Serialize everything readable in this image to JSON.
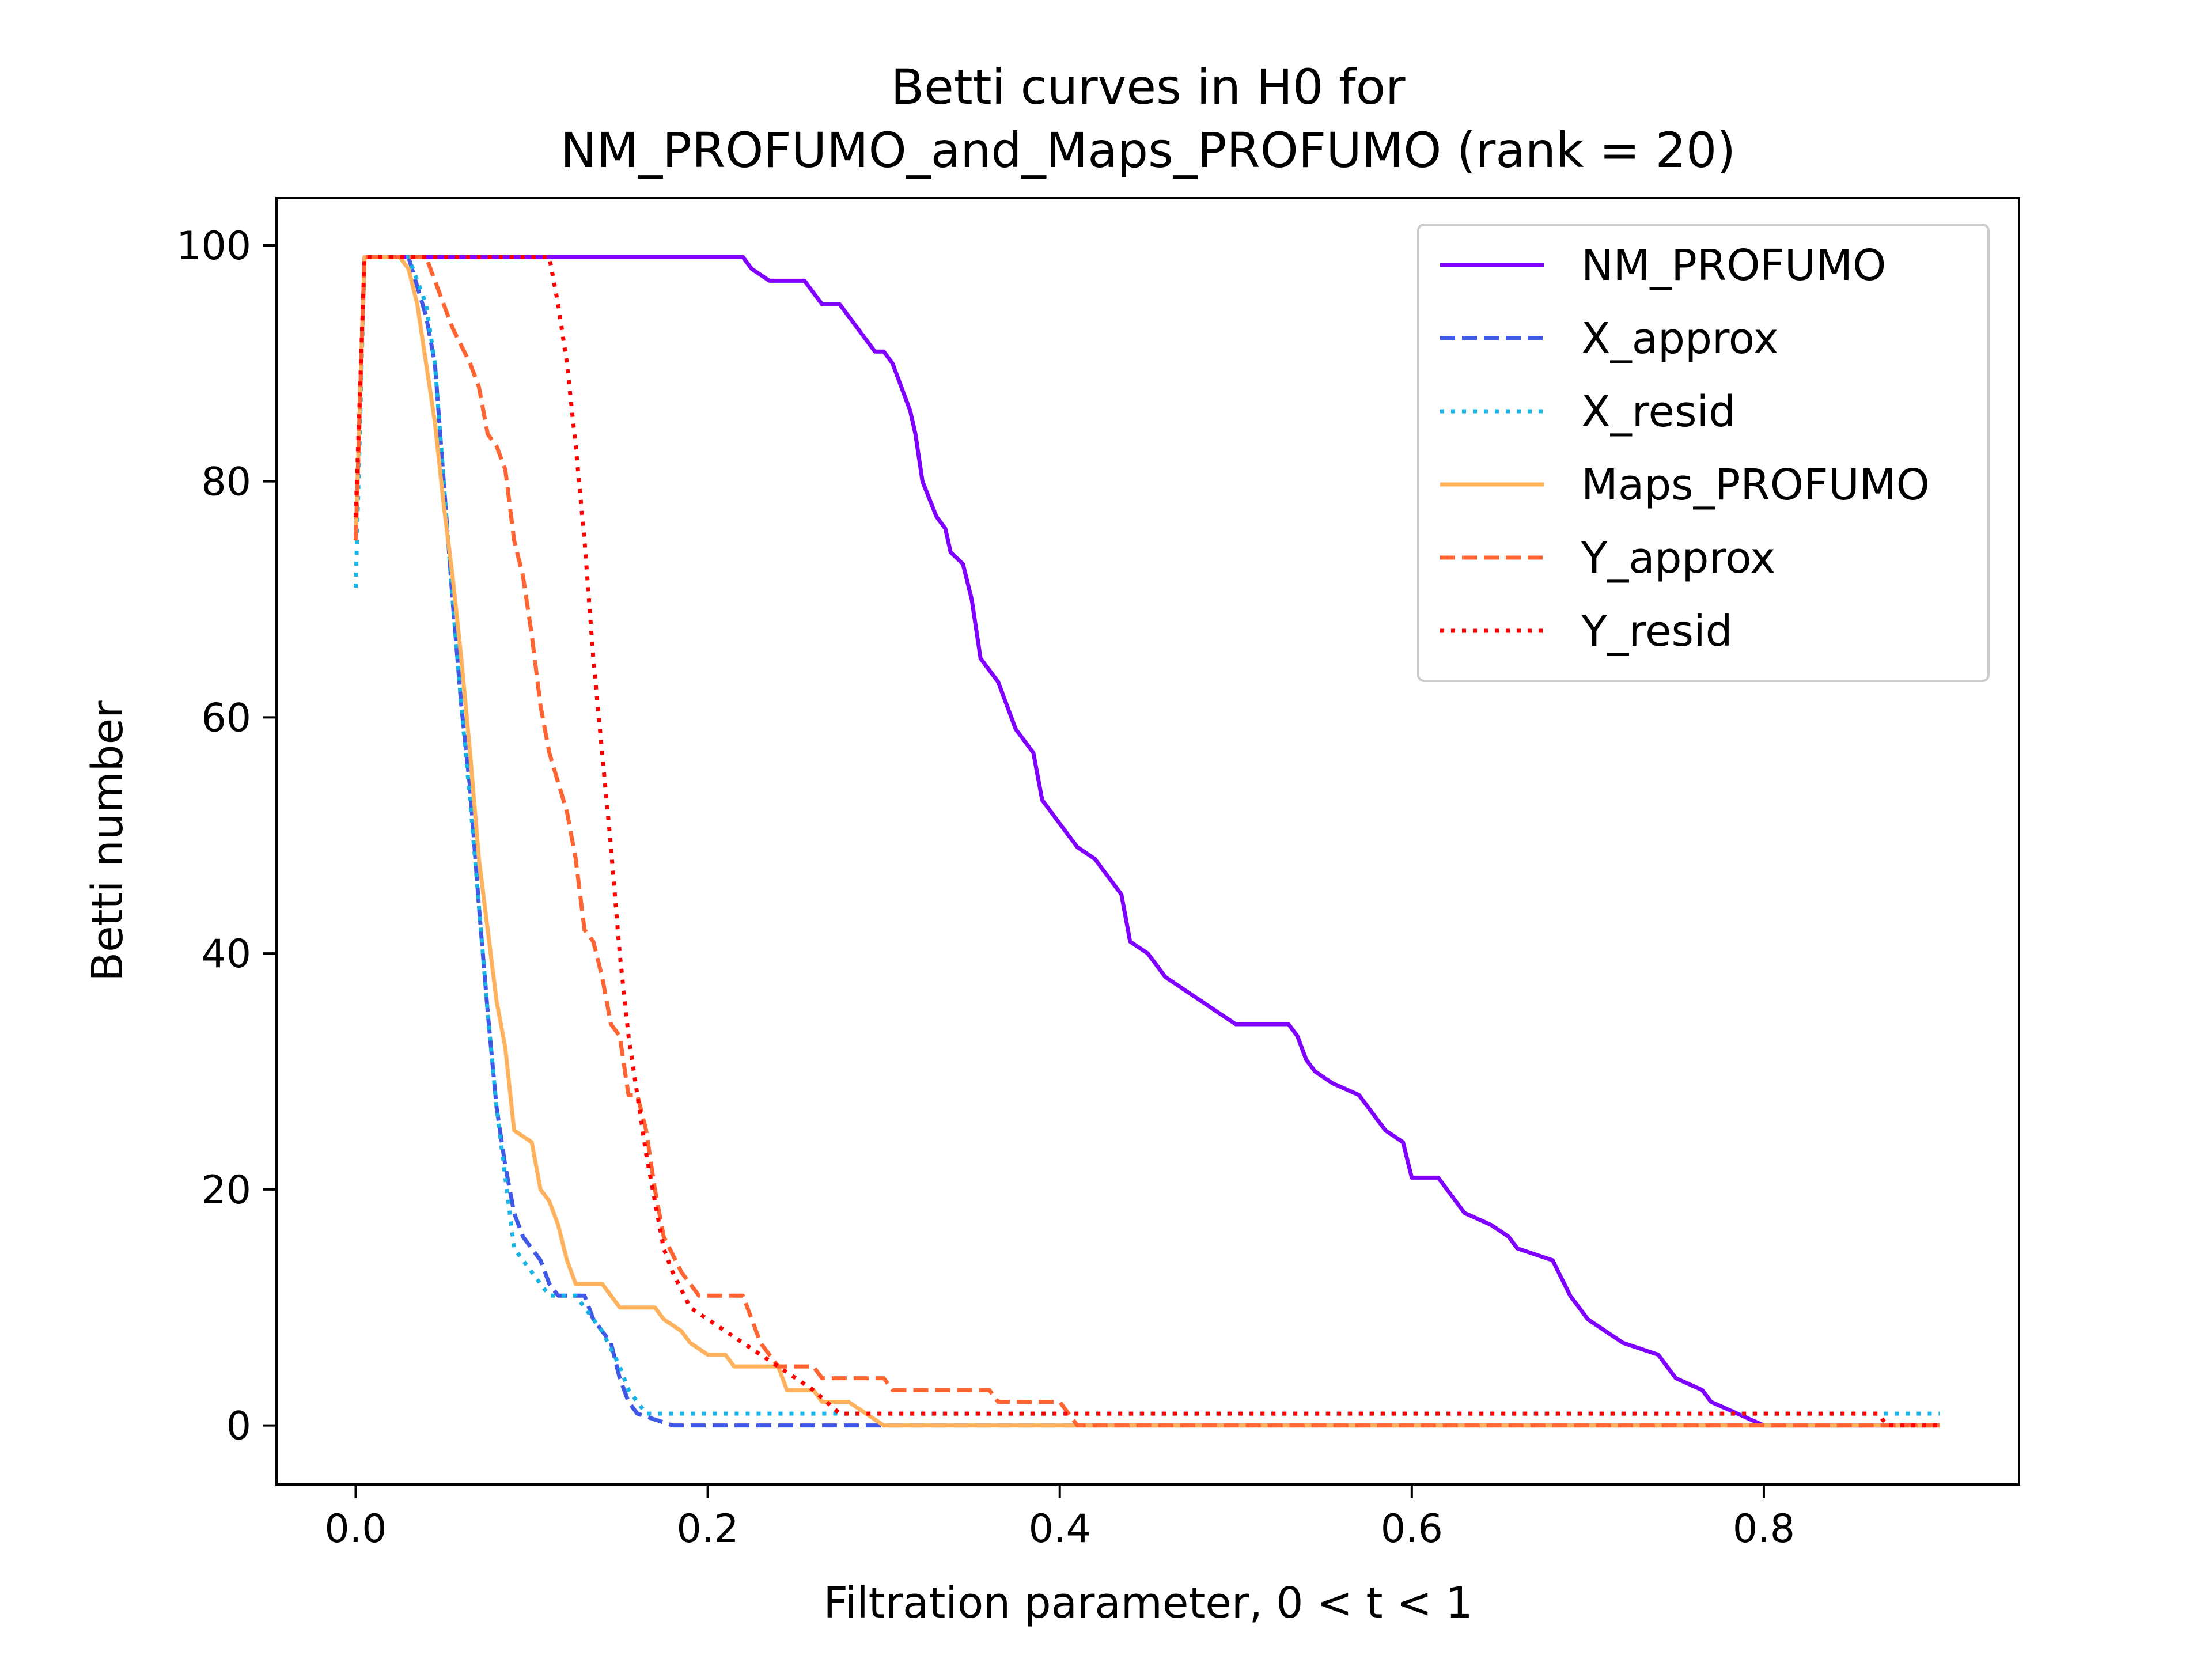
{
  "chart_data": {
    "type": "line",
    "title": "Betti curves in H0 for",
    "subtitle": "NM_PROFUMO_and_Maps_PROFUMO (rank = 20)",
    "xlabel": "Filtration parameter, 0 < t < 1",
    "ylabel": "Betti number",
    "xlim": [
      -0.045,
      0.945
    ],
    "ylim": [
      -5,
      104
    ],
    "xticks": [
      0.0,
      0.2,
      0.4,
      0.6,
      0.8
    ],
    "xtick_labels": [
      "0.0",
      "0.2",
      "0.4",
      "0.6",
      "0.8"
    ],
    "yticks": [
      0,
      20,
      40,
      60,
      80,
      100
    ],
    "ytick_labels": [
      "0",
      "20",
      "40",
      "60",
      "80",
      "100"
    ],
    "grid": false,
    "legend_position": "top-right",
    "series": [
      {
        "name": "NM_PROFUMO",
        "color": "#7f00ff",
        "dash": "solid",
        "width": 7,
        "points": [
          [
            0,
            75
          ],
          [
            0.005,
            99
          ],
          [
            0.22,
            99
          ],
          [
            0.225,
            98
          ],
          [
            0.235,
            97
          ],
          [
            0.255,
            97
          ],
          [
            0.26,
            96
          ],
          [
            0.265,
            95
          ],
          [
            0.275,
            95
          ],
          [
            0.28,
            94
          ],
          [
            0.285,
            93
          ],
          [
            0.29,
            92
          ],
          [
            0.295,
            91
          ],
          [
            0.3,
            91
          ],
          [
            0.305,
            90
          ],
          [
            0.31,
            88
          ],
          [
            0.315,
            86
          ],
          [
            0.318,
            84
          ],
          [
            0.322,
            80
          ],
          [
            0.33,
            77
          ],
          [
            0.335,
            76
          ],
          [
            0.338,
            74
          ],
          [
            0.345,
            73
          ],
          [
            0.35,
            70
          ],
          [
            0.355,
            65
          ],
          [
            0.365,
            63
          ],
          [
            0.375,
            59
          ],
          [
            0.385,
            57
          ],
          [
            0.39,
            53
          ],
          [
            0.395,
            52
          ],
          [
            0.4,
            51
          ],
          [
            0.41,
            49
          ],
          [
            0.42,
            48
          ],
          [
            0.43,
            46
          ],
          [
            0.435,
            45
          ],
          [
            0.44,
            41
          ],
          [
            0.45,
            40
          ],
          [
            0.46,
            38
          ],
          [
            0.47,
            37
          ],
          [
            0.48,
            36
          ],
          [
            0.49,
            35
          ],
          [
            0.5,
            34
          ],
          [
            0.53,
            34
          ],
          [
            0.535,
            33
          ],
          [
            0.54,
            31
          ],
          [
            0.545,
            30
          ],
          [
            0.555,
            29
          ],
          [
            0.57,
            28
          ],
          [
            0.58,
            26
          ],
          [
            0.585,
            25
          ],
          [
            0.595,
            24
          ],
          [
            0.6,
            21
          ],
          [
            0.615,
            21
          ],
          [
            0.62,
            20
          ],
          [
            0.63,
            18
          ],
          [
            0.645,
            17
          ],
          [
            0.655,
            16
          ],
          [
            0.66,
            15
          ],
          [
            0.68,
            14
          ],
          [
            0.69,
            11
          ],
          [
            0.7,
            9
          ],
          [
            0.71,
            8
          ],
          [
            0.72,
            7
          ],
          [
            0.74,
            6
          ],
          [
            0.75,
            4
          ],
          [
            0.765,
            3
          ],
          [
            0.77,
            2
          ],
          [
            0.785,
            1
          ],
          [
            0.8,
            0
          ],
          [
            0.9,
            0
          ]
        ]
      },
      {
        "name": "X_approx",
        "color": "#4058e6",
        "dash": "dashed",
        "width": 7,
        "points": [
          [
            0,
            75
          ],
          [
            0.005,
            99
          ],
          [
            0.03,
            99
          ],
          [
            0.04,
            94
          ],
          [
            0.045,
            90
          ],
          [
            0.05,
            80
          ],
          [
            0.055,
            70
          ],
          [
            0.06,
            61
          ],
          [
            0.065,
            54
          ],
          [
            0.07,
            44
          ],
          [
            0.075,
            35
          ],
          [
            0.08,
            27
          ],
          [
            0.085,
            22
          ],
          [
            0.09,
            18
          ],
          [
            0.095,
            16
          ],
          [
            0.1,
            15
          ],
          [
            0.105,
            14
          ],
          [
            0.11,
            12
          ],
          [
            0.115,
            11
          ],
          [
            0.13,
            11
          ],
          [
            0.135,
            9
          ],
          [
            0.145,
            7
          ],
          [
            0.15,
            4
          ],
          [
            0.155,
            2
          ],
          [
            0.16,
            1
          ],
          [
            0.18,
            0
          ],
          [
            0.9,
            0
          ]
        ]
      },
      {
        "name": "X_resid",
        "color": "#19b4e6",
        "dash": "dotted",
        "width": 7,
        "points": [
          [
            0,
            71
          ],
          [
            0.005,
            99
          ],
          [
            0.03,
            99
          ],
          [
            0.04,
            95
          ],
          [
            0.045,
            90
          ],
          [
            0.05,
            80
          ],
          [
            0.055,
            70
          ],
          [
            0.06,
            61
          ],
          [
            0.065,
            53
          ],
          [
            0.07,
            44
          ],
          [
            0.075,
            35
          ],
          [
            0.08,
            27
          ],
          [
            0.085,
            21
          ],
          [
            0.09,
            15
          ],
          [
            0.095,
            14
          ],
          [
            0.1,
            13
          ],
          [
            0.105,
            12
          ],
          [
            0.11,
            11
          ],
          [
            0.125,
            11
          ],
          [
            0.13,
            10
          ],
          [
            0.14,
            8
          ],
          [
            0.15,
            5
          ],
          [
            0.155,
            3
          ],
          [
            0.16,
            2
          ],
          [
            0.165,
            1
          ],
          [
            0.9,
            1
          ]
        ]
      },
      {
        "name": "Maps_PROFUMO",
        "color": "#ffb25e",
        "dash": "solid",
        "width": 7,
        "points": [
          [
            0,
            75
          ],
          [
            0.005,
            99
          ],
          [
            0.025,
            99
          ],
          [
            0.03,
            98
          ],
          [
            0.035,
            95
          ],
          [
            0.04,
            90
          ],
          [
            0.045,
            85
          ],
          [
            0.05,
            78
          ],
          [
            0.055,
            72
          ],
          [
            0.06,
            65
          ],
          [
            0.065,
            57
          ],
          [
            0.07,
            48
          ],
          [
            0.075,
            42
          ],
          [
            0.08,
            36
          ],
          [
            0.085,
            32
          ],
          [
            0.09,
            25
          ],
          [
            0.1,
            24
          ],
          [
            0.105,
            20
          ],
          [
            0.11,
            19
          ],
          [
            0.115,
            17
          ],
          [
            0.12,
            14
          ],
          [
            0.125,
            12
          ],
          [
            0.14,
            12
          ],
          [
            0.145,
            11
          ],
          [
            0.15,
            10
          ],
          [
            0.17,
            10
          ],
          [
            0.175,
            9
          ],
          [
            0.185,
            8
          ],
          [
            0.19,
            7
          ],
          [
            0.2,
            6
          ],
          [
            0.21,
            6
          ],
          [
            0.215,
            5
          ],
          [
            0.24,
            5
          ],
          [
            0.245,
            3
          ],
          [
            0.26,
            3
          ],
          [
            0.265,
            2
          ],
          [
            0.28,
            2
          ],
          [
            0.3,
            0
          ],
          [
            0.9,
            0
          ]
        ]
      },
      {
        "name": "Y_approx",
        "color": "#ff6433",
        "dash": "dashed",
        "width": 7,
        "points": [
          [
            0,
            75
          ],
          [
            0.005,
            99
          ],
          [
            0.04,
            99
          ],
          [
            0.045,
            97
          ],
          [
            0.055,
            93
          ],
          [
            0.065,
            90
          ],
          [
            0.07,
            88
          ],
          [
            0.075,
            84
          ],
          [
            0.08,
            83
          ],
          [
            0.085,
            81
          ],
          [
            0.09,
            75
          ],
          [
            0.095,
            72
          ],
          [
            0.1,
            67
          ],
          [
            0.105,
            61
          ],
          [
            0.11,
            57
          ],
          [
            0.12,
            52
          ],
          [
            0.125,
            48
          ],
          [
            0.13,
            42
          ],
          [
            0.135,
            41
          ],
          [
            0.14,
            38
          ],
          [
            0.145,
            34
          ],
          [
            0.15,
            33
          ],
          [
            0.155,
            28
          ],
          [
            0.16,
            28
          ],
          [
            0.165,
            25
          ],
          [
            0.17,
            20
          ],
          [
            0.175,
            16
          ],
          [
            0.185,
            13
          ],
          [
            0.195,
            11
          ],
          [
            0.22,
            11
          ],
          [
            0.225,
            9
          ],
          [
            0.23,
            7
          ],
          [
            0.24,
            5
          ],
          [
            0.26,
            5
          ],
          [
            0.265,
            4
          ],
          [
            0.3,
            4
          ],
          [
            0.305,
            3
          ],
          [
            0.36,
            3
          ],
          [
            0.365,
            2
          ],
          [
            0.4,
            2
          ],
          [
            0.405,
            1
          ],
          [
            0.41,
            0
          ],
          [
            0.9,
            0
          ]
        ]
      },
      {
        "name": "Y_resid",
        "color": "#ff0000",
        "dash": "dotted",
        "width": 7,
        "points": [
          [
            0,
            77
          ],
          [
            0.005,
            99
          ],
          [
            0.11,
            99
          ],
          [
            0.115,
            95
          ],
          [
            0.12,
            90
          ],
          [
            0.125,
            83
          ],
          [
            0.13,
            75
          ],
          [
            0.135,
            65
          ],
          [
            0.14,
            57
          ],
          [
            0.145,
            49
          ],
          [
            0.15,
            40
          ],
          [
            0.155,
            33
          ],
          [
            0.16,
            28
          ],
          [
            0.165,
            23
          ],
          [
            0.17,
            19
          ],
          [
            0.175,
            15
          ],
          [
            0.18,
            13
          ],
          [
            0.19,
            10
          ],
          [
            0.2,
            9
          ],
          [
            0.21,
            8
          ],
          [
            0.22,
            7
          ],
          [
            0.23,
            6
          ],
          [
            0.24,
            5
          ],
          [
            0.26,
            3
          ],
          [
            0.275,
            1
          ],
          [
            0.865,
            1
          ],
          [
            0.87,
            0
          ],
          [
            0.9,
            0
          ]
        ]
      }
    ]
  }
}
